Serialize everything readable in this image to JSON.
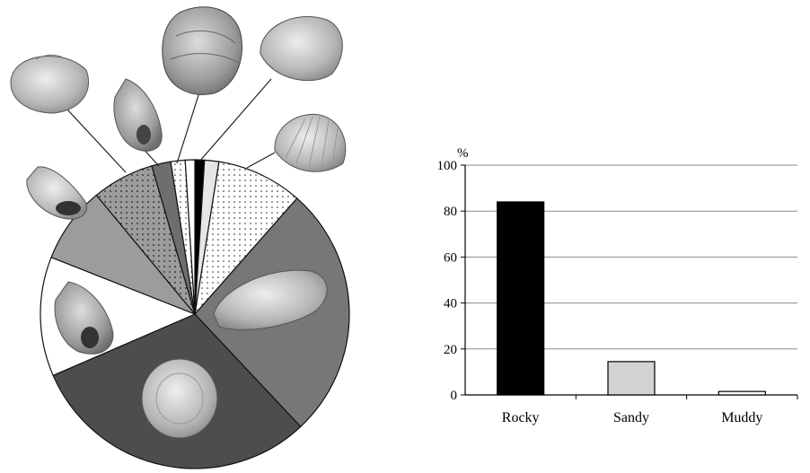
{
  "chart_data": [
    {
      "type": "pie",
      "title": "",
      "slices": [
        {
          "value": 1.0,
          "fill": "#000000",
          "pattern": "none"
        },
        {
          "value": 1.5,
          "fill": "#e6e6e6",
          "pattern": "none"
        },
        {
          "value": 9.0,
          "fill": "#ffffff",
          "pattern": "dots"
        },
        {
          "value": 26.5,
          "fill": "#777777",
          "pattern": "none"
        },
        {
          "value": 30.5,
          "fill": "#4d4d4d",
          "pattern": "none"
        },
        {
          "value": 12.5,
          "fill": "#ffffff",
          "pattern": "none"
        },
        {
          "value": 8.0,
          "fill": "#9c9c9c",
          "pattern": "none"
        },
        {
          "value": 6.5,
          "fill": "#9c9c9c",
          "pattern": "dots"
        },
        {
          "value": 2.0,
          "fill": "#6e6e6e",
          "pattern": "none"
        },
        {
          "value": 1.5,
          "fill": "#ffffff",
          "pattern": "dots"
        },
        {
          "value": 1.0,
          "fill": "#ffffff",
          "pattern": "none"
        }
      ],
      "shell_icons": [
        "clam-shell-icon",
        "snail-shell-icon",
        "oyster-shell-icon",
        "clam-shell-icon",
        "cockle-shell-icon",
        "snail-shell-icon",
        "snail-shell-icon",
        "mussel-shell-icon",
        "limpet-shell-icon"
      ]
    },
    {
      "type": "bar",
      "categories": [
        "Rocky",
        "Sandy",
        "Muddy"
      ],
      "values": [
        84,
        14.5,
        1.5
      ],
      "colors": [
        "#000000",
        "#d3d3d3",
        "#ffffff"
      ],
      "ylabel": "%",
      "ylim": [
        0,
        100
      ],
      "yticks": [
        "0",
        "20",
        "40",
        "60",
        "80",
        "100"
      ],
      "grid": true,
      "legend": "none"
    }
  ]
}
